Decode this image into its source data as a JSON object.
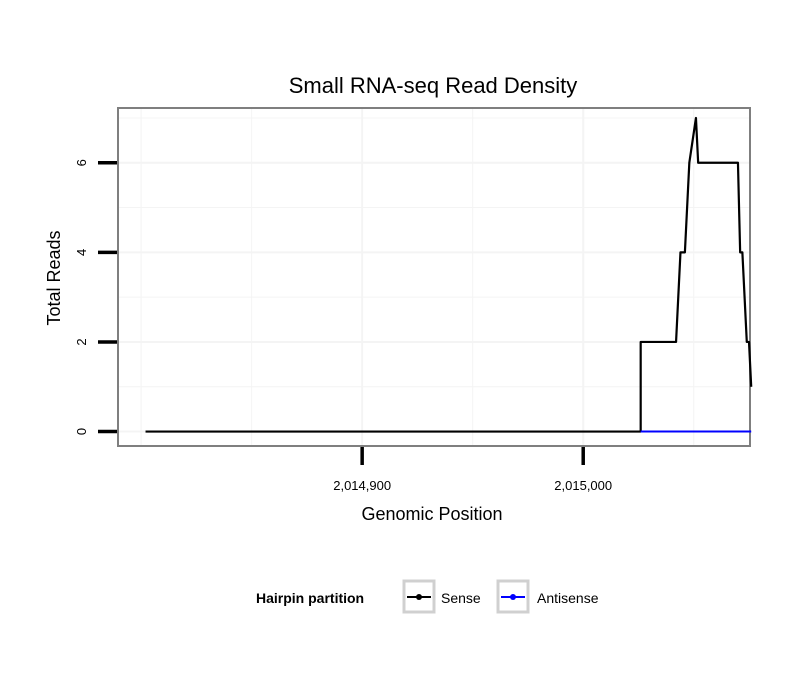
{
  "chart_data": {
    "type": "line",
    "title": "Small RNA-seq Read Density",
    "xlabel": "Genomic Position",
    "ylabel": "Total Reads",
    "xlim": [
      2014790,
      2015075
    ],
    "ylim": [
      -0.3,
      7.2
    ],
    "x_ticks": [
      2014900,
      2015000
    ],
    "x_tick_labels": [
      "2,014,900",
      "2,015,000"
    ],
    "y_ticks": [
      0,
      2,
      4,
      6
    ],
    "y_tick_labels": [
      "0",
      "2",
      "4",
      "6"
    ],
    "grid": true,
    "legend": {
      "title": "Hairpin partition",
      "position": "bottom",
      "entries": [
        "Sense",
        "Antisense"
      ]
    },
    "series": [
      {
        "name": "Sense",
        "color": "#000000",
        "x": [
          2014802,
          2015026,
          2015026,
          2015042,
          2015043,
          2015044,
          2015046,
          2015047,
          2015048,
          2015051,
          2015052,
          2015055,
          2015055,
          2015070,
          2015071,
          2015072,
          2015074,
          2015075,
          2015076
        ],
        "values": [
          0,
          0,
          2,
          2,
          3,
          4,
          4,
          5,
          6,
          7,
          6,
          6,
          6,
          6,
          4,
          4,
          2,
          2,
          1
        ]
      },
      {
        "name": "Antisense",
        "color": "#0000ff",
        "x": [
          2015026,
          2015076
        ],
        "values": [
          0,
          0
        ]
      }
    ]
  }
}
